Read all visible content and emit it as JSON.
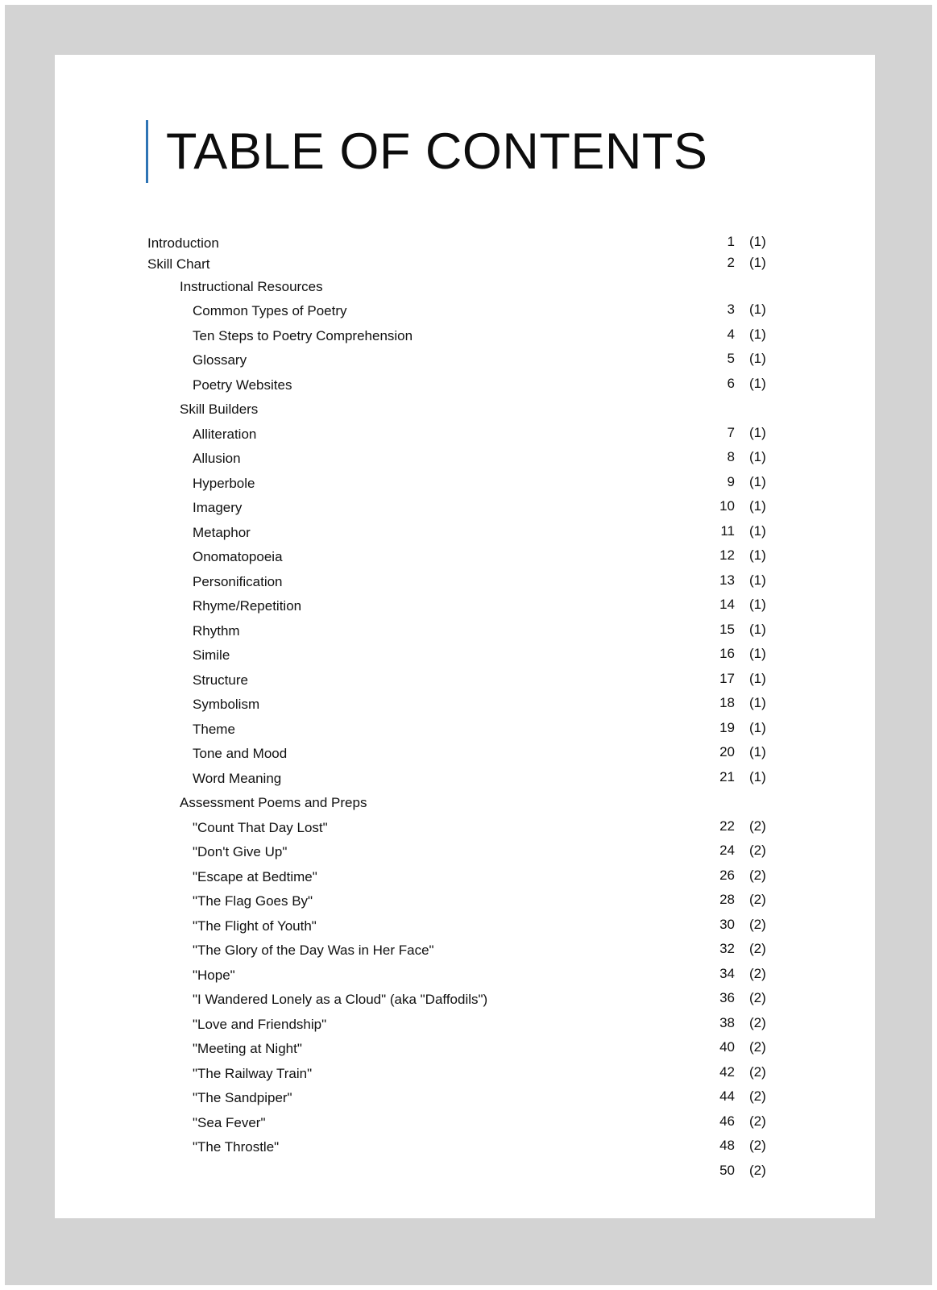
{
  "title": "TABLE OF CONTENTS",
  "accent_color": "#2e74b5",
  "entries": [
    {
      "label": "Introduction",
      "level": 0,
      "page": "1",
      "part": "(1)"
    },
    {
      "label": "Skill Chart",
      "level": 0,
      "page": "2",
      "part": "(1)"
    },
    {
      "label": "Instructional Resources",
      "level": 1
    },
    {
      "label": "Common Types of Poetry",
      "level": 2,
      "page": "3",
      "part": "(1)"
    },
    {
      "label": "Ten Steps to Poetry Comprehension",
      "level": 2,
      "page": "4",
      "part": "(1)"
    },
    {
      "label": "Glossary",
      "level": 2,
      "page": "5",
      "part": "(1)"
    },
    {
      "label": "Poetry Websites",
      "level": 2,
      "page": "6",
      "part": "(1)"
    },
    {
      "label": "Skill Builders",
      "level": 1
    },
    {
      "label": "Alliteration",
      "level": 2,
      "page": "7",
      "part": "(1)"
    },
    {
      "label": "Allusion",
      "level": 2,
      "page": "8",
      "part": "(1)"
    },
    {
      "label": "Hyperbole",
      "level": 2,
      "page": "9",
      "part": "(1)"
    },
    {
      "label": "Imagery",
      "level": 2,
      "page": "10",
      "part": "(1)"
    },
    {
      "label": "Metaphor",
      "level": 2,
      "page": "11",
      "part": "(1)"
    },
    {
      "label": "Onomatopoeia",
      "level": 2,
      "page": "12",
      "part": "(1)"
    },
    {
      "label": "Personification",
      "level": 2,
      "page": "13",
      "part": "(1)"
    },
    {
      "label": "Rhyme/Repetition",
      "level": 2,
      "page": "14",
      "part": "(1)"
    },
    {
      "label": "Rhythm",
      "level": 2,
      "page": "15",
      "part": "(1)"
    },
    {
      "label": "Simile",
      "level": 2,
      "page": "16",
      "part": "(1)"
    },
    {
      "label": "Structure",
      "level": 2,
      "page": "17",
      "part": "(1)"
    },
    {
      "label": "Symbolism",
      "level": 2,
      "page": "18",
      "part": "(1)"
    },
    {
      "label": "Theme",
      "level": 2,
      "page": "19",
      "part": "(1)"
    },
    {
      "label": "Tone and Mood",
      "level": 2,
      "page": "20",
      "part": "(1)"
    },
    {
      "label": "Word Meaning",
      "level": 2,
      "page": "21",
      "part": "(1)"
    },
    {
      "label": "Assessment Poems and Preps",
      "level": 1
    },
    {
      "label": "\"Count That Day Lost\"",
      "level": 2,
      "page": "22",
      "part": "(2)"
    },
    {
      "label": "\"Don't Give Up\"",
      "level": 2,
      "page": "24",
      "part": "(2)"
    },
    {
      "label": "\"Escape at Bedtime\"",
      "level": 2,
      "page": "26",
      "part": "(2)"
    },
    {
      "label": "\"The Flag Goes By\"",
      "level": 2,
      "page": "28",
      "part": "(2)"
    },
    {
      "label": "\"The Flight of Youth\"",
      "level": 2,
      "page": "30",
      "part": "(2)"
    },
    {
      "label": "\"The Glory of the Day Was in Her Face\"",
      "level": 2,
      "page": "32",
      "part": "(2)"
    },
    {
      "label": "\"Hope\"",
      "level": 2,
      "page": "34",
      "part": "(2)"
    },
    {
      "label": "\"I Wandered Lonely as a Cloud\" (aka \"Daffodils\")",
      "level": 2,
      "page": "36",
      "part": "(2)"
    },
    {
      "label": "\"Love and Friendship\"",
      "level": 2,
      "page": "38",
      "part": "(2)"
    },
    {
      "label": "\"Meeting at Night\"",
      "level": 2,
      "page": "40",
      "part": "(2)"
    },
    {
      "label": "\"The Railway Train\"",
      "level": 2,
      "page": "42",
      "part": "(2)"
    },
    {
      "label": "\"The Sandpiper\"",
      "level": 2,
      "page": "44",
      "part": "(2)"
    },
    {
      "label": "\"Sea Fever\"",
      "level": 2,
      "page": "46",
      "part": "(2)"
    },
    {
      "label": "\"The Throstle\"",
      "level": 2,
      "page": "48",
      "part": "(2)"
    },
    {
      "label": "",
      "level": 2,
      "page": "50",
      "part": "(2)"
    }
  ]
}
